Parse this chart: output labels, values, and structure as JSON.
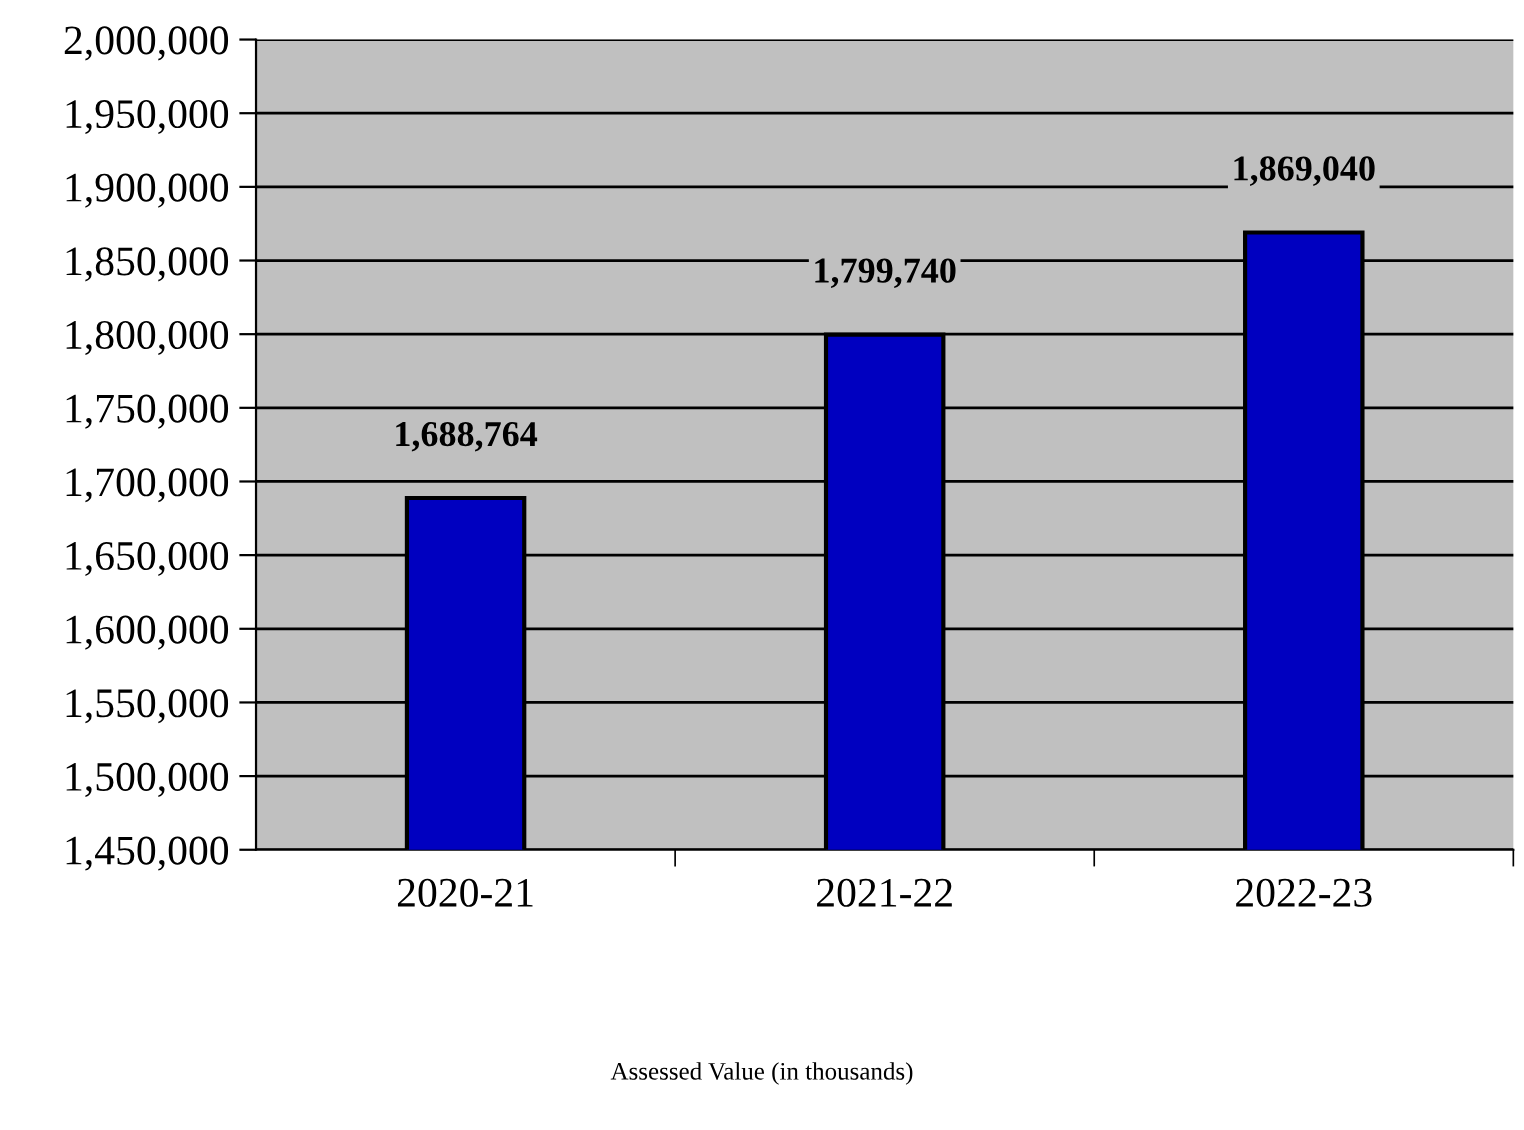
{
  "chart_data": {
    "type": "bar",
    "categories": [
      "2020-21",
      "2021-22",
      "2022-23"
    ],
    "values": [
      1688764,
      1799740,
      1869040
    ],
    "color": "#0000c0",
    "ylim": [
      1450000,
      2000000
    ],
    "yticks": [
      {
        "value": 1450000,
        "label": "1,450,000"
      },
      {
        "value": 1500000,
        "label": "1,500,000"
      },
      {
        "value": 1550000,
        "label": "1,550,000"
      },
      {
        "value": 1600000,
        "label": "1,600,000"
      },
      {
        "value": 1650000,
        "label": "1,650,000"
      },
      {
        "value": 1700000,
        "label": "1,700,000"
      },
      {
        "value": 1750000,
        "label": "1,750,000"
      },
      {
        "value": 1800000,
        "label": "1,800,000"
      },
      {
        "value": 1850000,
        "label": "1,850,000"
      },
      {
        "value": 1900000,
        "label": "1,900,000"
      },
      {
        "value": 1950000,
        "label": "1,950,000"
      },
      {
        "value": 2000000,
        "label": "2,000,000"
      }
    ],
    "grid": "y",
    "value_labels": [
      "1,688,764",
      "1,799,740",
      "1,869,040"
    ],
    "annotations": [
      "Assessed Value (in thousands)"
    ]
  }
}
